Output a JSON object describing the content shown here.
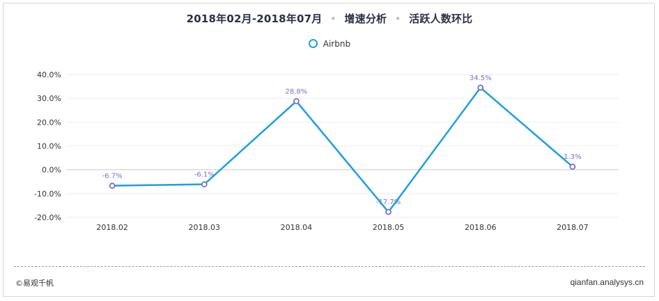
{
  "header": {
    "title_parts": [
      "2018年02月-2018年07月",
      "增速分析",
      "活跃人数环比"
    ],
    "separator": "•"
  },
  "legend": {
    "label": "Airbnb"
  },
  "footer": {
    "left": "©易观千帆",
    "right": "qianfan.analysys.cn"
  },
  "colors": {
    "line": "#1aa0e3",
    "marker": "#7b6fc6",
    "label": "#7b6fc6",
    "grid": "#eeeeee",
    "axis": "#cccccc"
  },
  "chart_data": {
    "type": "line",
    "title": "2018年02月-2018年07月 • 增速分析 • 活跃人数环比",
    "categories": [
      "2018.02",
      "2018.03",
      "2018.04",
      "2018.05",
      "2018.06",
      "2018.07"
    ],
    "series": [
      {
        "name": "Airbnb",
        "values": [
          -6.7,
          -6.1,
          28.8,
          -17.7,
          34.5,
          1.3
        ],
        "labels": [
          "-6.7%",
          "-6.1%",
          "28.8%",
          "-17.7%",
          "34.5%",
          "1.3%"
        ]
      }
    ],
    "yticks": [
      "40.0%",
      "30.0%",
      "20.0%",
      "10.0%",
      "0.0%",
      "-10.0%",
      "-20.0%"
    ],
    "ylim": [
      -20,
      40
    ],
    "xlabel": "",
    "ylabel": "",
    "grid": true,
    "legend_position": "top-center"
  }
}
